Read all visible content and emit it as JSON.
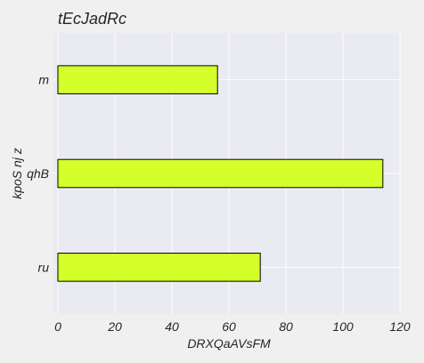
{
  "chart_data": {
    "type": "bar",
    "orientation": "horizontal",
    "title": "tEcJadRc",
    "xlabel": "DRXQaAVsFM",
    "ylabel": "kpoS nj z",
    "categories": [
      "ru",
      "qhB",
      "m"
    ],
    "values": [
      71,
      114,
      56
    ],
    "xlim": [
      0,
      120
    ],
    "xticks": [
      0,
      20,
      40,
      60,
      80,
      100,
      120
    ],
    "grid": true,
    "colors": {
      "bar_fill": "#d4ff2a",
      "bar_edge": "#000000",
      "plot_background": "#eaeaf2",
      "page_background": "#f0f0f0",
      "grid": "#ffffff"
    }
  }
}
